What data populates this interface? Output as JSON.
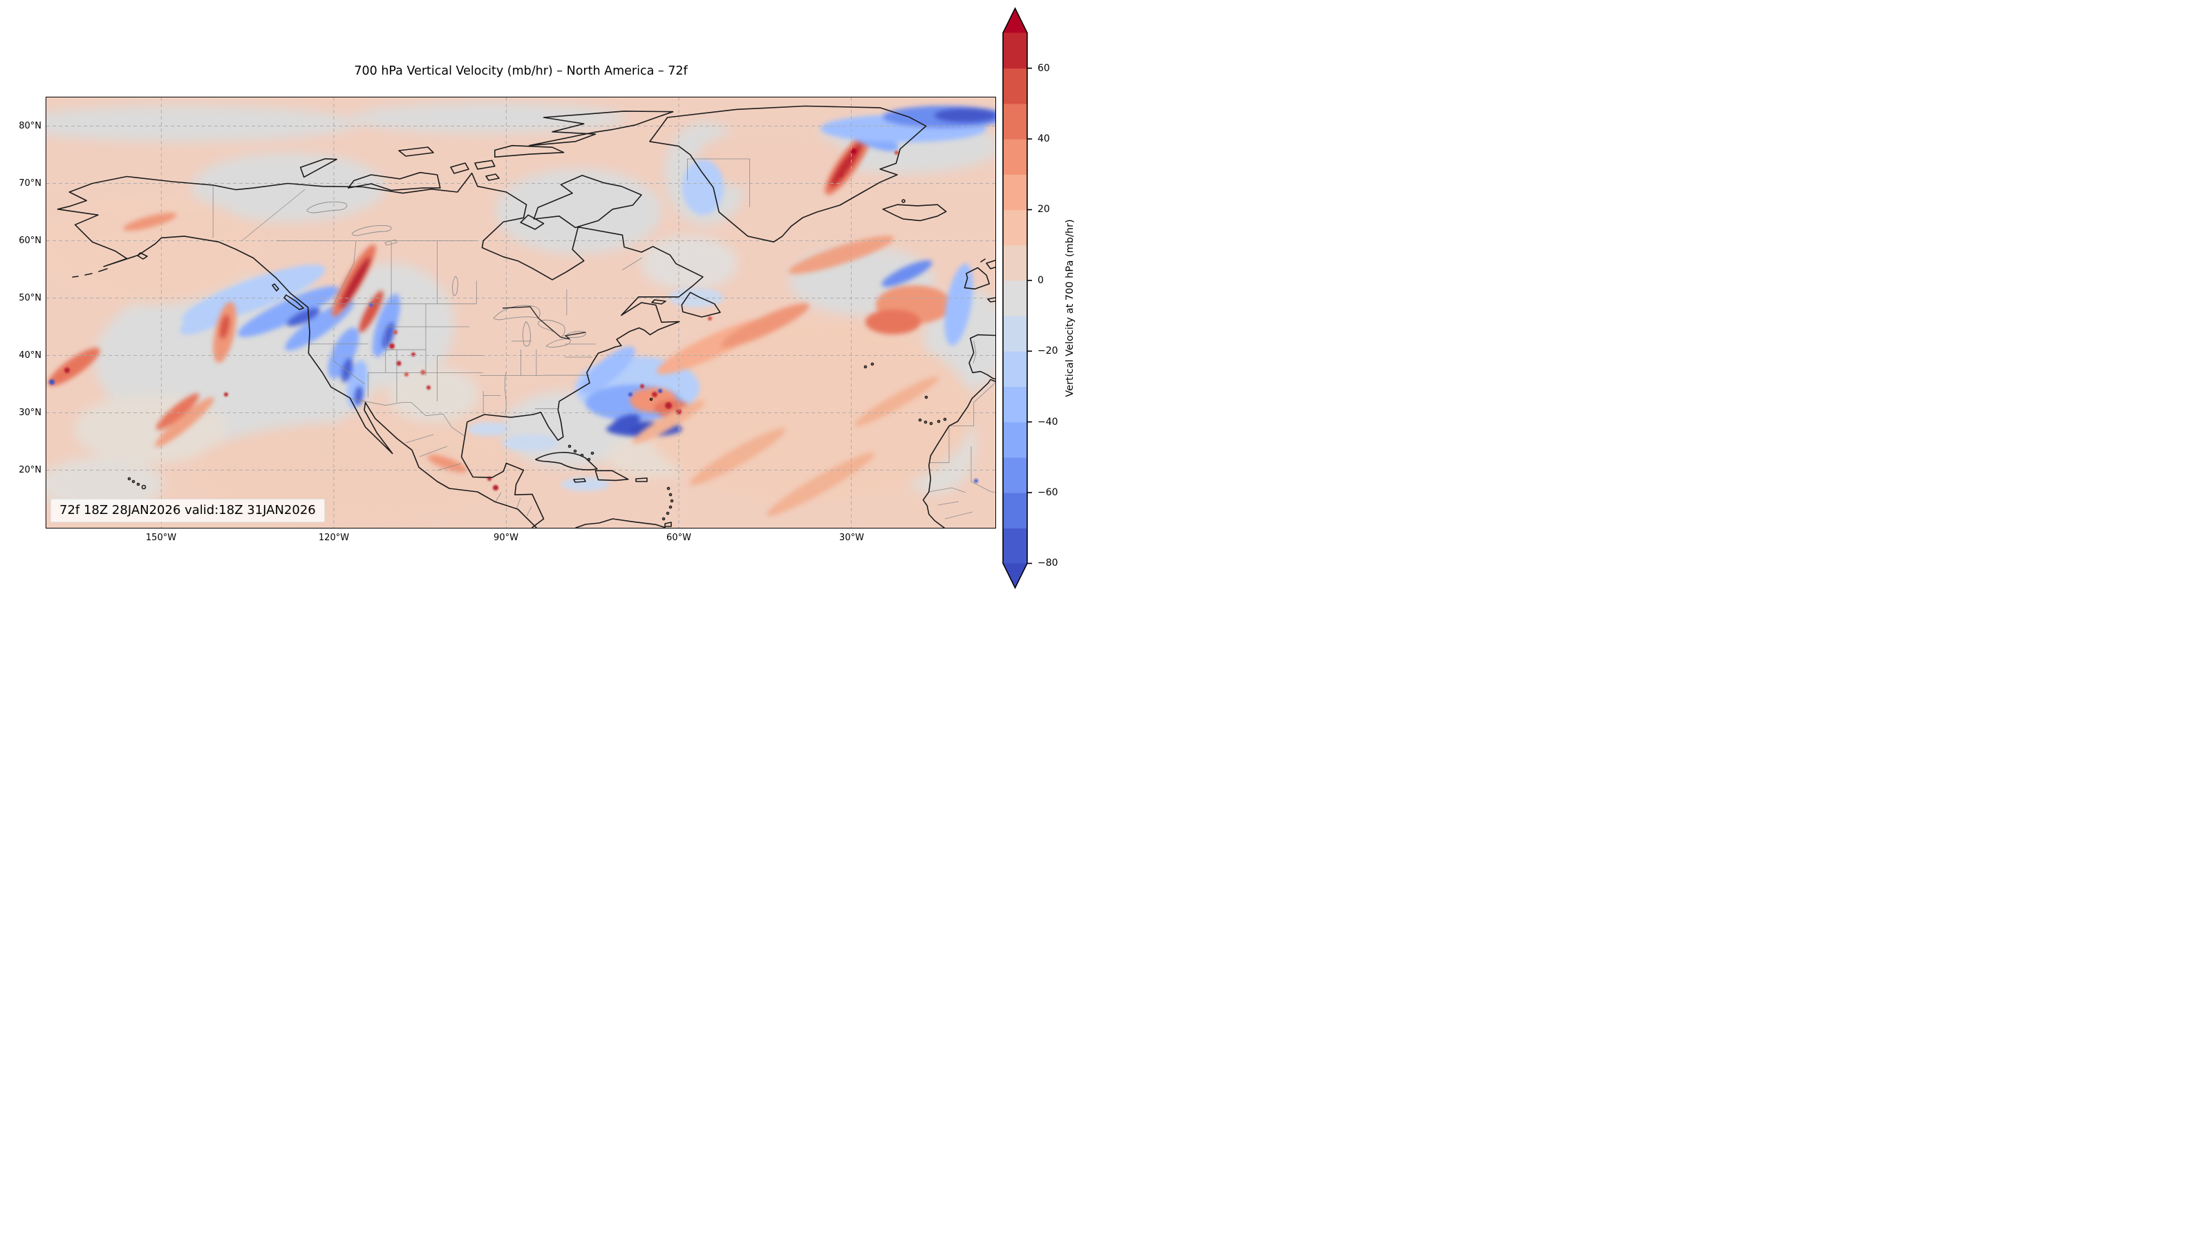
{
  "figure": {
    "title": "700 hPa Vertical Velocity (mb/hr) – North America – 72f",
    "annotation": "72f 18Z 28JAN2026 valid:18Z 31JAN2026"
  },
  "axes": {
    "lat_labels": [
      "80°N",
      "70°N",
      "60°N",
      "50°N",
      "40°N",
      "30°N",
      "20°N"
    ],
    "lon_labels": [
      "150°W",
      "120°W",
      "90°W",
      "60°W",
      "30°W"
    ]
  },
  "colorbar": {
    "label": "Vertical Velocity at 700 hPa (mb/hr)",
    "tick_labels": [
      "60",
      "40",
      "20",
      "0",
      "−20",
      "−40",
      "−60",
      "−80"
    ],
    "tick_values": [
      60,
      40,
      20,
      0,
      -20,
      -40,
      -60,
      -80
    ],
    "levels": [
      -80,
      -70,
      -60,
      -50,
      -40,
      -30,
      -20,
      -10,
      0,
      10,
      20,
      30,
      40,
      50,
      60,
      70
    ],
    "segment_colors_bottom_to_top": [
      "#455bcd",
      "#5978e3",
      "#7092f3",
      "#87aafc",
      "#9fbeff",
      "#b5cefa",
      "#cbd9ef",
      "#dddddd",
      "#edd2c3",
      "#f6c2aa",
      "#f7ad8f",
      "#f29375",
      "#e7755c",
      "#d75344",
      "#c12930"
    ],
    "under_color": "#3b4cc0",
    "over_color": "#b40426",
    "extend": "both"
  },
  "chart_data": {
    "type": "heatmap",
    "subtype": "filled-contour forecast weather map",
    "title": "700 hPa Vertical Velocity (mb/hr) – North America – 72f",
    "field": "Vertical Velocity at 700 hPa",
    "units": "mb/hr",
    "forecast_hour": "72f",
    "init_time": "18Z 28JAN2026",
    "valid_time": "18Z 31JAN2026",
    "projection": "equirectangular (PlateCarree)",
    "extent": {
      "lon_west": -170,
      "lon_east": -5,
      "lat_south": 10,
      "lat_north": 85
    },
    "x_tick_lons_deg_west": [
      150,
      120,
      90,
      60,
      30
    ],
    "y_tick_lats_deg_north": [
      80,
      70,
      60,
      50,
      40,
      30,
      20
    ],
    "contour_levels": [
      -80,
      -70,
      -60,
      -50,
      -40,
      -30,
      -20,
      -10,
      0,
      10,
      20,
      30,
      40,
      50,
      60,
      70
    ],
    "colormap": "coolwarm, 15 discrete bins, extend both",
    "colorbar_ticks": [
      60,
      40,
      20,
      0,
      -20,
      -40,
      -60,
      -80
    ],
    "grid": "dashed gray graticule every 10° lat / 30° lon",
    "notable_features": [
      "broad weak ascent (pale orange, ~5-15 mb/hr) over most oceans with near-zero gray zones over central Canada, the Arctic and subtropics",
      "large cyclonic comma of descent (blue arcs, -20 to -60) in the Gulf of Alaska with embedded ascent cells",
      "intense orographic wave couplets (dark red streaks >50) along the British Columbia coast range and Canadian Rockies",
      "scattered strong ascent maxima along the US Rockies and Sierra Madre of Mexico",
      "major storm east of the US East Coast near 30-35N 60-70W: dark blue descent band (< -70) with dark red ascent cells (> 50)",
      "ascent streak (> 60) along the southeast Greenland coast with descent (blue) over the Greenland Sea near the top right",
      "disturbed ascent cluster in the central North Atlantic near 45-50N 30-40W flanked by blue descent arcs"
    ]
  }
}
